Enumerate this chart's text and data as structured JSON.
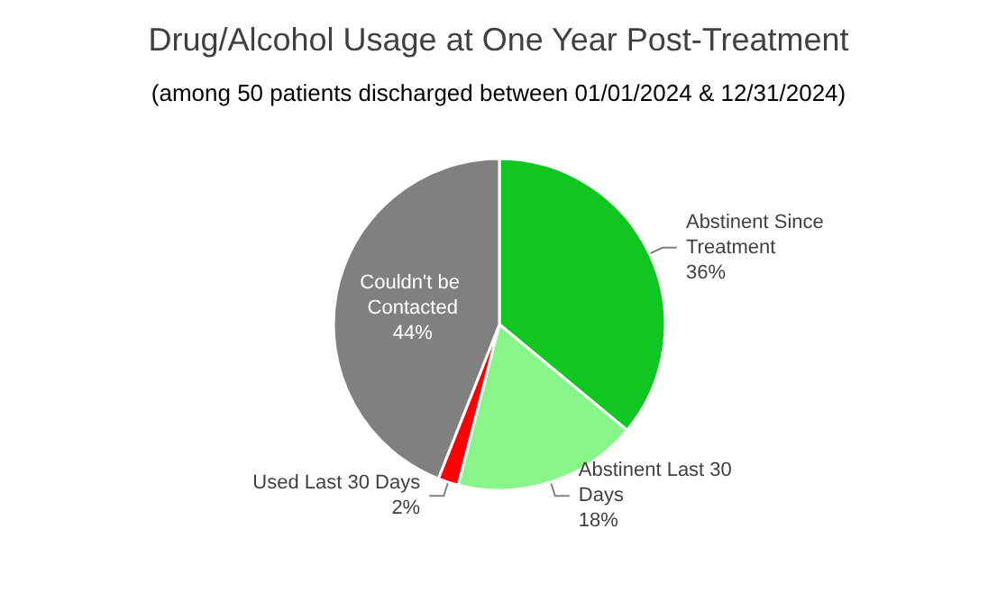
{
  "chart_data": {
    "type": "pie",
    "title": "Drug/Alcohol Usage at One Year Post-Treatment",
    "subtitle": "(among 50 patients discharged between 01/01/2024 & 12/31/2024)",
    "categories": [
      "Abstinent Since Treatment",
      "Abstinent Last 30 Days",
      "Used Last 30 Days",
      "Couldn't be Contacted"
    ],
    "values": [
      36,
      18,
      2,
      44
    ],
    "value_labels": [
      "36%",
      "18%",
      "2%",
      "44%"
    ],
    "colors": [
      "#10c621",
      "#87f58a",
      "#ff0000",
      "#808080"
    ],
    "legend": false
  }
}
